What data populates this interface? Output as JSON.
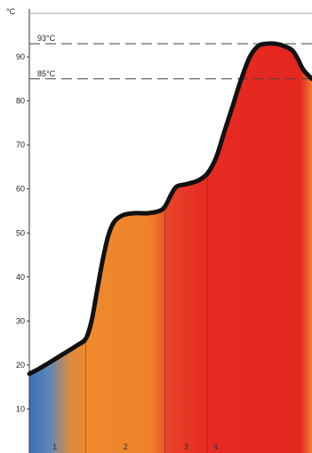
{
  "chart_data": {
    "type": "area",
    "ylabel": "°C",
    "ylim": [
      0,
      95
    ],
    "yticks": [
      "10",
      "20",
      "30",
      "40",
      "50",
      "60",
      "70",
      "80",
      "90"
    ],
    "reference_lines": [
      {
        "label": "93°C",
        "value": 93
      },
      {
        "label": "85°C",
        "value": 85
      }
    ],
    "zones": [
      {
        "label": "1",
        "start": 0,
        "end": 0.2
      },
      {
        "label": "2",
        "start": 0.2,
        "end": 0.48
      },
      {
        "label": "3",
        "start": 0.48,
        "end": 0.63
      },
      {
        "label": "4",
        "start": 0.63,
        "end": 1.0
      }
    ],
    "curve": {
      "x": [
        0,
        0.03,
        0.07,
        0.12,
        0.17,
        0.2,
        0.22,
        0.24,
        0.26,
        0.28,
        0.3,
        0.33,
        0.37,
        0.42,
        0.46,
        0.48,
        0.5,
        0.52,
        0.55,
        0.58,
        0.6,
        0.63,
        0.66,
        0.69,
        0.72,
        0.75,
        0.78,
        0.81,
        0.84,
        0.87,
        0.9,
        0.93,
        0.95,
        0.97,
        1.0
      ],
      "y": [
        18,
        19,
        20.5,
        22.5,
        24.5,
        26,
        30,
        37,
        44,
        49.5,
        52.5,
        54,
        54.5,
        54.5,
        55,
        56,
        58.5,
        60.5,
        61,
        61.5,
        62,
        63.5,
        67,
        73,
        79,
        85,
        90,
        92.5,
        93,
        93,
        92.5,
        91.5,
        89.5,
        87,
        85
      ]
    },
    "colors": {
      "blue": "#3a6fb5",
      "orange": "#ef8a2c",
      "red": "#e62a22",
      "curve": "#111111",
      "dashed": "#444444"
    }
  }
}
